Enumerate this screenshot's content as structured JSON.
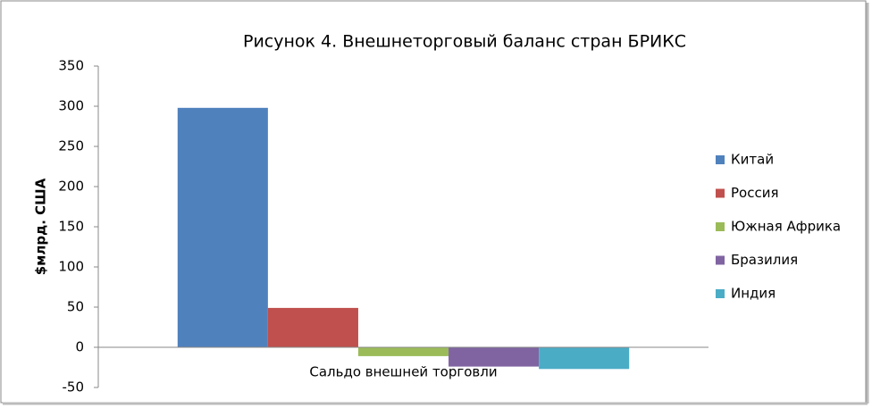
{
  "chart_data": {
    "type": "bar",
    "title": "Рисунок 4. Внешнеторговый баланс стран БРИКС",
    "y_label": "$млрд. США",
    "categories": [
      "Сальдо внешней торговли"
    ],
    "series": [
      {
        "name": "Китай",
        "color": "#4f81bd",
        "values": [
          298
        ]
      },
      {
        "name": "Россия",
        "color": "#c0504d",
        "values": [
          49
        ]
      },
      {
        "name": "Южная Африка",
        "color": "#9bbb59",
        "values": [
          -11
        ]
      },
      {
        "name": "Бразилия",
        "color": "#8064a2",
        "values": [
          -24
        ]
      },
      {
        "name": "Индия",
        "color": "#4bacc6",
        "values": [
          -27
        ]
      }
    ],
    "ylim": [
      -50,
      350
    ],
    "yticks": [
      -50,
      0,
      50,
      100,
      150,
      200,
      250,
      300,
      350
    ],
    "legend": "right",
    "grid": false
  }
}
